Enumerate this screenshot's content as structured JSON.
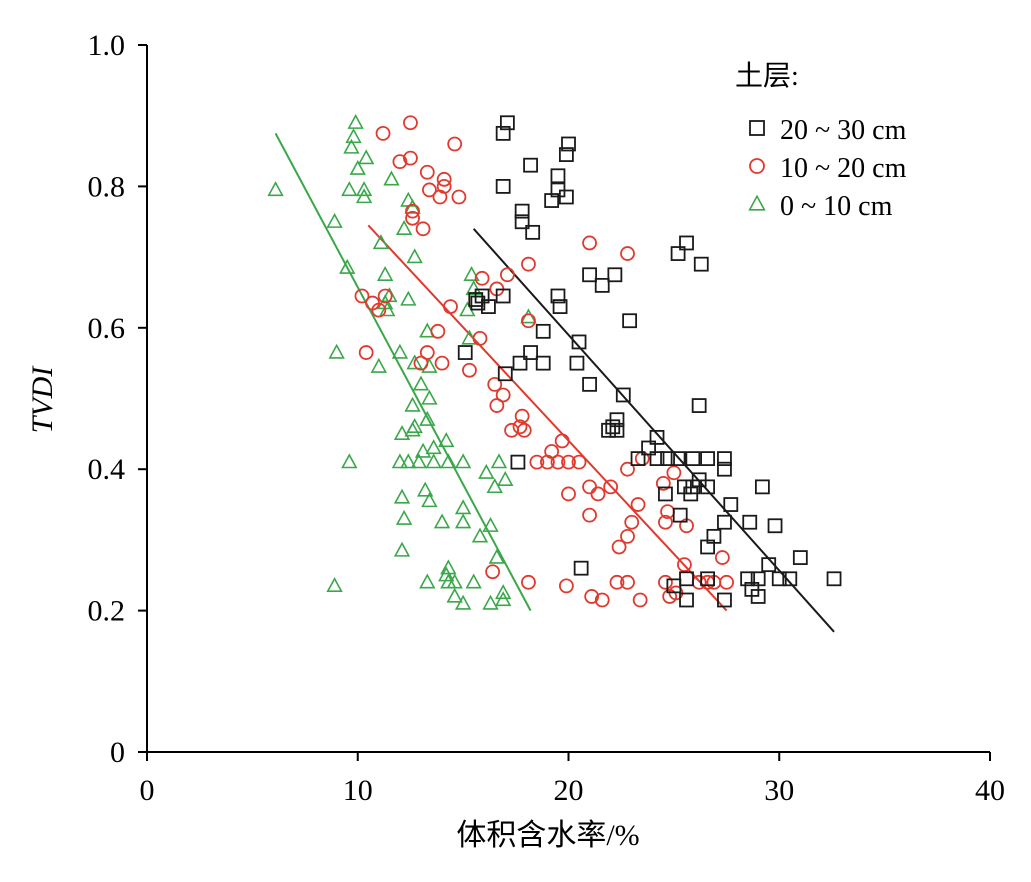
{
  "chart_data": {
    "type": "scatter",
    "xlabel": "体积含水率/%",
    "ylabel": "TVDI",
    "xlim": [
      0,
      40
    ],
    "ylim": [
      0,
      1.0
    ],
    "x_ticks": [
      "0",
      "10",
      "20",
      "30",
      "40"
    ],
    "y_ticks": [
      "0",
      "0.2",
      "0.4",
      "0.6",
      "0.8",
      "1.0"
    ],
    "grid": false,
    "legend": {
      "title": "土层:",
      "position": "top-right",
      "entries": [
        "20 ~ 30 cm",
        "10 ~ 20 cm",
        "0 ~ 10 cm"
      ]
    },
    "series": [
      {
        "name": "20 ~ 30 cm",
        "marker": "square",
        "color": "#1a1a1a",
        "trend": [
          [
            15.5,
            0.74
          ],
          [
            32.6,
            0.17
          ]
        ],
        "points": [
          [
            17.1,
            0.89
          ],
          [
            16.9,
            0.875
          ],
          [
            20.0,
            0.86
          ],
          [
            19.9,
            0.845
          ],
          [
            18.2,
            0.83
          ],
          [
            19.5,
            0.815
          ],
          [
            16.9,
            0.8
          ],
          [
            19.5,
            0.795
          ],
          [
            19.9,
            0.785
          ],
          [
            19.2,
            0.78
          ],
          [
            17.8,
            0.765
          ],
          [
            17.8,
            0.75
          ],
          [
            18.3,
            0.735
          ],
          [
            25.6,
            0.72
          ],
          [
            25.2,
            0.705
          ],
          [
            26.3,
            0.69
          ],
          [
            21.0,
            0.675
          ],
          [
            22.2,
            0.675
          ],
          [
            21.6,
            0.66
          ],
          [
            15.9,
            0.645
          ],
          [
            16.9,
            0.645
          ],
          [
            19.5,
            0.645
          ],
          [
            15.6,
            0.64
          ],
          [
            16.2,
            0.63
          ],
          [
            19.6,
            0.63
          ],
          [
            15.7,
            0.635
          ],
          [
            22.9,
            0.61
          ],
          [
            18.8,
            0.595
          ],
          [
            20.5,
            0.58
          ],
          [
            15.1,
            0.565
          ],
          [
            18.2,
            0.565
          ],
          [
            17.7,
            0.55
          ],
          [
            18.8,
            0.55
          ],
          [
            20.4,
            0.55
          ],
          [
            17.0,
            0.535
          ],
          [
            21.0,
            0.52
          ],
          [
            22.6,
            0.505
          ],
          [
            26.2,
            0.49
          ],
          [
            22.3,
            0.47
          ],
          [
            22.3,
            0.455
          ],
          [
            21.9,
            0.455
          ],
          [
            22.1,
            0.46
          ],
          [
            24.2,
            0.445
          ],
          [
            23.8,
            0.43
          ],
          [
            23.3,
            0.415
          ],
          [
            24.2,
            0.415
          ],
          [
            24.7,
            0.415
          ],
          [
            25.2,
            0.415
          ],
          [
            25.9,
            0.415
          ],
          [
            26.6,
            0.415
          ],
          [
            27.4,
            0.415
          ],
          [
            17.6,
            0.41
          ],
          [
            27.4,
            0.4
          ],
          [
            26.2,
            0.385
          ],
          [
            25.5,
            0.375
          ],
          [
            25.9,
            0.375
          ],
          [
            26.6,
            0.375
          ],
          [
            29.2,
            0.375
          ],
          [
            24.6,
            0.365
          ],
          [
            25.8,
            0.365
          ],
          [
            27.7,
            0.35
          ],
          [
            25.3,
            0.335
          ],
          [
            27.4,
            0.325
          ],
          [
            28.6,
            0.325
          ],
          [
            29.8,
            0.32
          ],
          [
            26.9,
            0.305
          ],
          [
            26.6,
            0.29
          ],
          [
            31.0,
            0.275
          ],
          [
            29.5,
            0.265
          ],
          [
            20.6,
            0.26
          ],
          [
            25.0,
            0.235
          ],
          [
            28.5,
            0.245
          ],
          [
            29.0,
            0.245
          ],
          [
            30.0,
            0.245
          ],
          [
            30.5,
            0.245
          ],
          [
            32.6,
            0.245
          ],
          [
            26.6,
            0.245
          ],
          [
            25.6,
            0.245
          ],
          [
            28.7,
            0.23
          ],
          [
            29.0,
            0.22
          ],
          [
            25.6,
            0.215
          ],
          [
            27.4,
            0.215
          ]
        ]
      },
      {
        "name": "10 ~ 20 cm",
        "marker": "circle",
        "color": "#e03a2f",
        "trend": [
          [
            10.5,
            0.745
          ],
          [
            27.5,
            0.2
          ]
        ],
        "points": [
          [
            12.5,
            0.89
          ],
          [
            11.2,
            0.875
          ],
          [
            14.6,
            0.86
          ],
          [
            12.5,
            0.84
          ],
          [
            12.0,
            0.835
          ],
          [
            13.3,
            0.82
          ],
          [
            14.1,
            0.81
          ],
          [
            14.1,
            0.8
          ],
          [
            13.4,
            0.795
          ],
          [
            13.9,
            0.785
          ],
          [
            14.8,
            0.785
          ],
          [
            12.6,
            0.765
          ],
          [
            12.6,
            0.755
          ],
          [
            13.1,
            0.74
          ],
          [
            21.0,
            0.72
          ],
          [
            22.8,
            0.705
          ],
          [
            18.1,
            0.69
          ],
          [
            17.1,
            0.675
          ],
          [
            15.9,
            0.67
          ],
          [
            16.6,
            0.655
          ],
          [
            10.2,
            0.645
          ],
          [
            11.3,
            0.645
          ],
          [
            10.7,
            0.635
          ],
          [
            11.0,
            0.625
          ],
          [
            14.4,
            0.63
          ],
          [
            18.1,
            0.61
          ],
          [
            13.8,
            0.595
          ],
          [
            15.8,
            0.585
          ],
          [
            10.4,
            0.565
          ],
          [
            13.3,
            0.565
          ],
          [
            14.0,
            0.55
          ],
          [
            13.0,
            0.55
          ],
          [
            15.3,
            0.54
          ],
          [
            16.5,
            0.52
          ],
          [
            16.9,
            0.505
          ],
          [
            16.6,
            0.49
          ],
          [
            17.8,
            0.475
          ],
          [
            17.7,
            0.46
          ],
          [
            17.3,
            0.455
          ],
          [
            17.9,
            0.455
          ],
          [
            19.7,
            0.44
          ],
          [
            19.2,
            0.425
          ],
          [
            18.5,
            0.41
          ],
          [
            19.0,
            0.41
          ],
          [
            19.5,
            0.41
          ],
          [
            20.0,
            0.41
          ],
          [
            20.5,
            0.41
          ],
          [
            23.5,
            0.415
          ],
          [
            22.8,
            0.4
          ],
          [
            25.0,
            0.395
          ],
          [
            21.0,
            0.375
          ],
          [
            22.0,
            0.375
          ],
          [
            24.5,
            0.38
          ],
          [
            21.4,
            0.365
          ],
          [
            20.0,
            0.365
          ],
          [
            23.3,
            0.35
          ],
          [
            24.7,
            0.34
          ],
          [
            21.0,
            0.335
          ],
          [
            23.0,
            0.325
          ],
          [
            24.6,
            0.325
          ],
          [
            25.6,
            0.32
          ],
          [
            22.8,
            0.305
          ],
          [
            22.4,
            0.29
          ],
          [
            27.3,
            0.275
          ],
          [
            25.5,
            0.265
          ],
          [
            16.4,
            0.255
          ],
          [
            18.1,
            0.24
          ],
          [
            19.9,
            0.235
          ],
          [
            22.3,
            0.24
          ],
          [
            22.8,
            0.24
          ],
          [
            24.6,
            0.24
          ],
          [
            26.2,
            0.24
          ],
          [
            26.6,
            0.24
          ],
          [
            26.9,
            0.24
          ],
          [
            27.5,
            0.24
          ],
          [
            25.1,
            0.225
          ],
          [
            24.8,
            0.22
          ],
          [
            21.1,
            0.22
          ],
          [
            21.6,
            0.215
          ],
          [
            23.4,
            0.215
          ]
        ]
      },
      {
        "name": "0 ~ 10 cm",
        "marker": "triangle",
        "color": "#3aa84a",
        "trend": [
          [
            6.1,
            0.875
          ],
          [
            18.2,
            0.2
          ]
        ],
        "points": [
          [
            9.9,
            0.89
          ],
          [
            9.8,
            0.87
          ],
          [
            9.7,
            0.855
          ],
          [
            10.4,
            0.84
          ],
          [
            10.0,
            0.825
          ],
          [
            11.6,
            0.81
          ],
          [
            6.1,
            0.795
          ],
          [
            9.6,
            0.795
          ],
          [
            10.3,
            0.795
          ],
          [
            10.3,
            0.785
          ],
          [
            12.4,
            0.78
          ],
          [
            12.6,
            0.77
          ],
          [
            8.9,
            0.75
          ],
          [
            12.2,
            0.74
          ],
          [
            11.1,
            0.72
          ],
          [
            12.7,
            0.7
          ],
          [
            9.5,
            0.685
          ],
          [
            11.3,
            0.675
          ],
          [
            15.4,
            0.675
          ],
          [
            15.5,
            0.655
          ],
          [
            11.5,
            0.645
          ],
          [
            12.4,
            0.64
          ],
          [
            11.3,
            0.635
          ],
          [
            11.4,
            0.625
          ],
          [
            15.2,
            0.625
          ],
          [
            18.1,
            0.615
          ],
          [
            13.3,
            0.595
          ],
          [
            15.3,
            0.585
          ],
          [
            9.0,
            0.565
          ],
          [
            12.0,
            0.565
          ],
          [
            12.7,
            0.55
          ],
          [
            13.4,
            0.545
          ],
          [
            11.0,
            0.545
          ],
          [
            13.0,
            0.52
          ],
          [
            13.4,
            0.5
          ],
          [
            12.6,
            0.49
          ],
          [
            13.3,
            0.47
          ],
          [
            12.7,
            0.46
          ],
          [
            12.6,
            0.455
          ],
          [
            12.1,
            0.45
          ],
          [
            14.2,
            0.44
          ],
          [
            13.1,
            0.425
          ],
          [
            13.6,
            0.43
          ],
          [
            9.6,
            0.41
          ],
          [
            12.0,
            0.41
          ],
          [
            12.4,
            0.41
          ],
          [
            12.9,
            0.41
          ],
          [
            13.6,
            0.41
          ],
          [
            14.3,
            0.41
          ],
          [
            15.0,
            0.41
          ],
          [
            16.7,
            0.41
          ],
          [
            16.1,
            0.395
          ],
          [
            17.0,
            0.385
          ],
          [
            13.2,
            0.37
          ],
          [
            16.5,
            0.375
          ],
          [
            12.1,
            0.36
          ],
          [
            13.4,
            0.355
          ],
          [
            15.0,
            0.345
          ],
          [
            12.2,
            0.33
          ],
          [
            14.0,
            0.325
          ],
          [
            15.0,
            0.325
          ],
          [
            16.3,
            0.32
          ],
          [
            15.8,
            0.305
          ],
          [
            12.1,
            0.285
          ],
          [
            16.6,
            0.275
          ],
          [
            14.3,
            0.26
          ],
          [
            14.2,
            0.25
          ],
          [
            13.3,
            0.24
          ],
          [
            14.3,
            0.24
          ],
          [
            14.6,
            0.24
          ],
          [
            15.5,
            0.24
          ],
          [
            8.9,
            0.235
          ],
          [
            16.9,
            0.225
          ],
          [
            16.9,
            0.215
          ],
          [
            14.6,
            0.22
          ],
          [
            15.0,
            0.21
          ],
          [
            16.3,
            0.21
          ]
        ]
      }
    ]
  }
}
